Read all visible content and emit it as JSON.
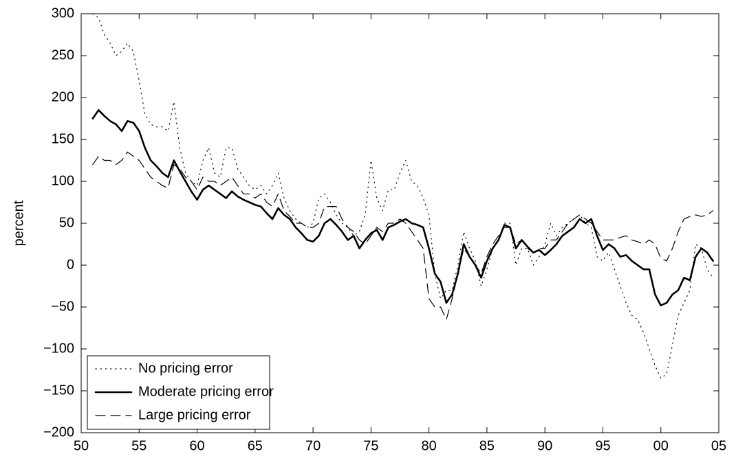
{
  "chart_data": {
    "type": "line",
    "y_label": "percent",
    "x": [
      1951,
      1951.5,
      1952,
      1952.5,
      1953,
      1953.5,
      1954,
      1954.5,
      1955,
      1955.5,
      1956,
      1956.5,
      1957,
      1957.5,
      1958,
      1958.5,
      1959,
      1959.5,
      1960,
      1960.5,
      1961,
      1961.5,
      1962,
      1962.5,
      1963,
      1963.5,
      1964,
      1964.5,
      1965,
      1965.5,
      1966,
      1966.5,
      1967,
      1967.5,
      1968,
      1968.5,
      1969,
      1969.5,
      1970,
      1970.5,
      1971,
      1971.5,
      1972,
      1972.5,
      1973,
      1973.5,
      1974,
      1974.5,
      1975,
      1975.5,
      1976,
      1976.5,
      1977,
      1977.5,
      1978,
      1978.5,
      1979,
      1979.5,
      1980,
      1980.5,
      1981,
      1981.5,
      1982,
      1982.5,
      1983,
      1983.5,
      1984,
      1984.5,
      1985,
      1985.5,
      1986,
      1986.5,
      1987,
      1987.5,
      1988,
      1988.5,
      1989,
      1989.5,
      1990,
      1990.5,
      1991,
      1991.5,
      1992,
      1992.5,
      1993,
      1993.5,
      1994,
      1994.5,
      1995,
      1995.5,
      1996,
      1996.5,
      1997,
      1997.5,
      1998,
      1998.5,
      1999,
      1999.5,
      2000,
      2000.5,
      2001,
      2001.5,
      2002,
      2002.5,
      2003,
      2003.5,
      2004,
      2004.5
    ],
    "series": [
      {
        "name": "No pricing error",
        "color": "#000000",
        "dash": "dotted",
        "values": [
          300,
          295,
          275,
          265,
          250,
          255,
          265,
          255,
          220,
          180,
          168,
          165,
          165,
          160,
          195,
          140,
          110,
          100,
          95,
          125,
          140,
          110,
          105,
          140,
          140,
          115,
          105,
          95,
          90,
          95,
          85,
          95,
          110,
          80,
          65,
          55,
          50,
          45,
          50,
          80,
          85,
          75,
          60,
          50,
          45,
          35,
          40,
          60,
          125,
          80,
          65,
          90,
          90,
          110,
          125,
          100,
          95,
          80,
          60,
          -10,
          -40,
          -30,
          -30,
          0,
          40,
          20,
          5,
          -25,
          -5,
          20,
          30,
          50,
          50,
          0,
          20,
          20,
          0,
          10,
          25,
          50,
          35,
          45,
          50,
          55,
          60,
          50,
          45,
          10,
          5,
          15,
          -5,
          -25,
          -45,
          -60,
          -65,
          -80,
          -100,
          -120,
          -135,
          -130,
          -95,
          -60,
          -45,
          -30,
          25,
          20,
          -5,
          -15
        ]
      },
      {
        "name": "Moderate pricing error",
        "color": "#000000",
        "dash": "solid",
        "values": [
          175,
          185,
          178,
          172,
          168,
          160,
          172,
          170,
          160,
          140,
          125,
          118,
          110,
          105,
          125,
          112,
          100,
          88,
          78,
          90,
          95,
          90,
          85,
          80,
          88,
          82,
          78,
          75,
          72,
          70,
          62,
          55,
          68,
          60,
          55,
          45,
          38,
          30,
          28,
          35,
          50,
          55,
          48,
          40,
          30,
          35,
          20,
          30,
          38,
          42,
          30,
          45,
          48,
          52,
          55,
          50,
          48,
          45,
          20,
          -10,
          -20,
          -45,
          -35,
          -10,
          25,
          10,
          0,
          -15,
          5,
          20,
          30,
          48,
          45,
          20,
          30,
          22,
          15,
          18,
          12,
          18,
          25,
          35,
          40,
          45,
          55,
          50,
          55,
          35,
          18,
          25,
          20,
          10,
          12,
          5,
          0,
          -5,
          -5,
          -35,
          -48,
          -45,
          -35,
          -30,
          -15,
          -18,
          10,
          20,
          15,
          5
        ]
      },
      {
        "name": "Large pricing error",
        "color": "#000000",
        "dash": "dashed",
        "values": [
          120,
          130,
          125,
          125,
          120,
          125,
          135,
          130,
          125,
          115,
          105,
          100,
          95,
          92,
          120,
          115,
          105,
          100,
          90,
          105,
          100,
          100,
          95,
          100,
          105,
          95,
          85,
          85,
          80,
          85,
          75,
          70,
          85,
          65,
          58,
          50,
          50,
          45,
          45,
          50,
          70,
          70,
          70,
          55,
          45,
          40,
          30,
          25,
          35,
          45,
          40,
          50,
          50,
          55,
          50,
          40,
          30,
          20,
          -40,
          -50,
          -50,
          -65,
          -40,
          -10,
          20,
          10,
          0,
          -10,
          10,
          25,
          35,
          45,
          45,
          25,
          30,
          20,
          15,
          20,
          20,
          30,
          30,
          40,
          50,
          55,
          60,
          55,
          50,
          40,
          30,
          30,
          30,
          33,
          35,
          30,
          28,
          25,
          30,
          25,
          8,
          5,
          20,
          40,
          55,
          58,
          60,
          58,
          60,
          65
        ]
      }
    ],
    "xlim": [
      1950,
      2005
    ],
    "xticks": [
      {
        "value": 1950,
        "label": "50"
      },
      {
        "value": 1955,
        "label": "55"
      },
      {
        "value": 1960,
        "label": "60"
      },
      {
        "value": 1965,
        "label": "65"
      },
      {
        "value": 1970,
        "label": "70"
      },
      {
        "value": 1975,
        "label": "75"
      },
      {
        "value": 1980,
        "label": "80"
      },
      {
        "value": 1985,
        "label": "85"
      },
      {
        "value": 1990,
        "label": "90"
      },
      {
        "value": 1995,
        "label": "95"
      },
      {
        "value": 2000,
        "label": "00"
      },
      {
        "value": 2005,
        "label": "05"
      }
    ],
    "ylim": [
      -200,
      300
    ],
    "yticks": [
      {
        "value": -200,
        "label": "−200"
      },
      {
        "value": -150,
        "label": "−150"
      },
      {
        "value": -100,
        "label": "−100"
      },
      {
        "value": -50,
        "label": "−50"
      },
      0,
      50,
      100,
      150,
      200,
      250,
      300
    ],
    "legend": "lower left"
  }
}
